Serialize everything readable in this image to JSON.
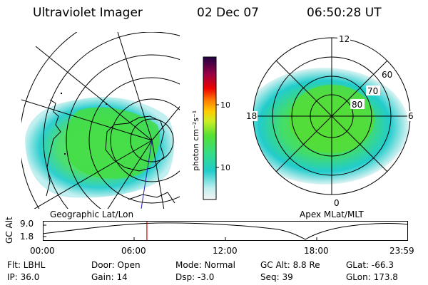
{
  "header": {
    "title": "Ultraviolet Imager",
    "date": "02 Dec 07",
    "time": "06:50:28 UT"
  },
  "panels": {
    "geographic_label": "Geographic Lat/Lon",
    "apex_label": "Apex MLat/MLT"
  },
  "colorbar": {
    "unit_label": "photon cm⁻²s⁻¹",
    "tick_100": "100",
    "tick_10": "10"
  },
  "polar": {
    "mlt_12": "12",
    "mlt_18": "18",
    "mlt_6": "6",
    "mlt_0": "0",
    "lat_60": "60",
    "lat_70": "70",
    "lat_80": "80"
  },
  "altitude": {
    "axis_label": "GC Alt",
    "tick_high": "9.0",
    "tick_low": "1.8",
    "time_ticks": [
      "00:00",
      "06:00",
      "12:00",
      "18:00",
      "23:59"
    ],
    "current_marker_hours": 6.84
  },
  "info": {
    "filter": "Flt: LBHL",
    "ip": "IP: 36.0",
    "door": "Door: Open",
    "gain": "Gain: 14",
    "mode": "Mode: Normal",
    "dsp": "Dsp:   -3.0",
    "gc_alt": "GC Alt: 8.8 Re",
    "seq": "Seq: 39",
    "glat": "GLat: -66.3",
    "glon": "GLon: 173.8"
  },
  "colors": {
    "line": "#000000",
    "marker": "#cc0000",
    "aurora_green": "#44dd44",
    "aurora_cyan": "#22cccc"
  }
}
